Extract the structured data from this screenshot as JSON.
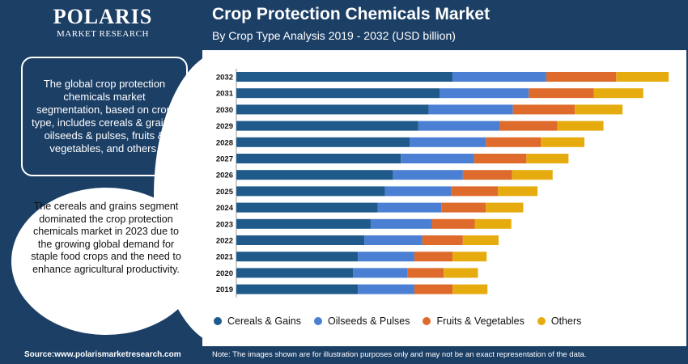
{
  "header": {
    "logo_title": "POLARIS",
    "logo_subtitle": "MARKET RESEARCH",
    "title": "Crop Protection Chemicals Market",
    "subtitle": "By Crop Type Analysis 2019 - 2032 (USD billion)"
  },
  "sidebar": {
    "box_text": "The global crop protection chemicals market segmentation, based on crop type, includes cereals & grains, oilseeds & pulses, fruits & vegetables, and others.",
    "circle_text": "The cereals and grains segment dominated the crop protection chemicals market in 2023 due to the growing global demand for staple food crops and the need to enhance agricultural productivity."
  },
  "footer": {
    "source": "Source:www.polarismarketresearch.com",
    "note": "Note: The images shown are for illustration purposes only and may not be an exact representation of the data."
  },
  "chart_data": {
    "type": "bar",
    "orientation": "horizontal",
    "stacked": true,
    "categories": [
      "2032",
      "2031",
      "2030",
      "2029",
      "2028",
      "2027",
      "2026",
      "2025",
      "2024",
      "2023",
      "2022",
      "2021",
      "2020",
      "2019"
    ],
    "series": [
      {
        "name": "Cereals & Gains",
        "color": "#1f5a8b",
        "values": [
          27.2,
          25.6,
          24.2,
          22.9,
          21.8,
          20.7,
          19.7,
          18.7,
          17.8,
          16.9,
          16.1,
          15.3,
          14.7,
          15.3
        ]
      },
      {
        "name": "Oilseeds & Pulses",
        "color": "#4a7fd4",
        "values": [
          11.8,
          11.2,
          10.6,
          10.2,
          9.6,
          9.2,
          8.8,
          8.3,
          8.0,
          7.7,
          7.3,
          7.1,
          6.8,
          7.1
        ]
      },
      {
        "name": "Fruits & Vegetables",
        "color": "#de6b2c",
        "values": [
          8.8,
          8.2,
          7.8,
          7.3,
          6.9,
          6.6,
          6.2,
          5.9,
          5.6,
          5.4,
          5.1,
          4.8,
          4.6,
          4.8
        ]
      },
      {
        "name": "Others",
        "color": "#e6ac0f",
        "values": [
          6.6,
          6.2,
          6.0,
          5.8,
          5.5,
          5.3,
          5.1,
          5.0,
          4.7,
          4.6,
          4.5,
          4.3,
          4.3,
          4.4
        ]
      }
    ],
    "title": "Crop Protection Chemicals Market",
    "subtitle": "By Crop Type Analysis 2019 - 2032 (USD billion)",
    "xlabel": "",
    "ylabel": "",
    "xlim": [
      0,
      55
    ],
    "grid": false,
    "legend_position": "bottom"
  }
}
